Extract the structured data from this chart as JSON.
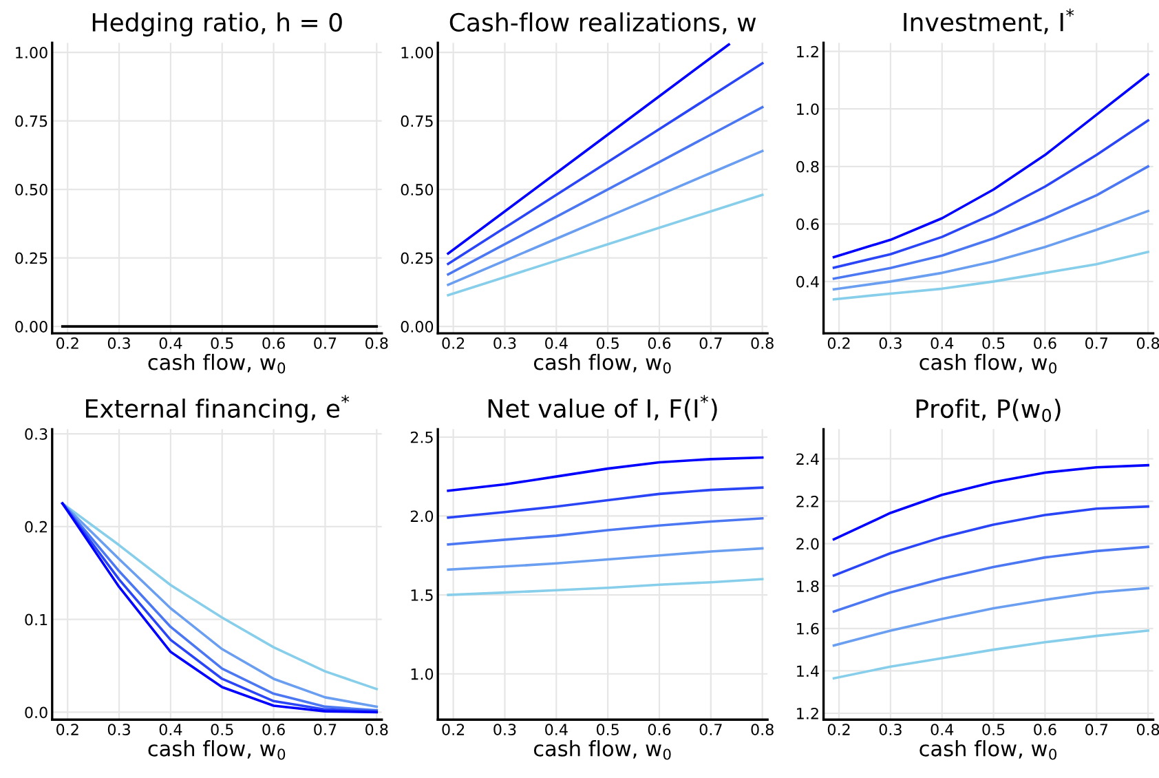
{
  "chart_data": [
    {
      "type": "line",
      "title": "Hedging ratio, h = 0",
      "xlabel": "cash flow, w$_{0}$",
      "x": [
        0.19,
        0.3,
        0.4,
        0.5,
        0.6,
        0.7,
        0.8
      ],
      "xlim": [
        0.17,
        0.81
      ],
      "xticks": [
        0.2,
        0.3,
        0.4,
        0.5,
        0.6,
        0.7,
        0.8
      ],
      "ylim": [
        -0.025,
        1.035
      ],
      "yticks": [
        {
          "value": 0,
          "label": "0.00"
        },
        {
          "value": 0.25,
          "label": "0.25"
        },
        {
          "value": 0.5,
          "label": "0.50"
        },
        {
          "value": 0.75,
          "label": "0.75"
        },
        {
          "value": 1,
          "label": "1.00"
        }
      ],
      "grid": true,
      "legend": false,
      "series": [
        {
          "color": "#000000",
          "values": [
            0,
            0,
            0,
            0,
            0,
            0,
            0
          ]
        }
      ]
    },
    {
      "type": "line",
      "title": "Cash-flow realizations, w",
      "xlabel": "cash flow, w$_{0}$",
      "x": [
        0.19,
        0.3,
        0.4,
        0.5,
        0.6,
        0.7,
        0.8
      ],
      "xlim": [
        0.17,
        0.81
      ],
      "xticks": [
        0.2,
        0.3,
        0.4,
        0.5,
        0.6,
        0.7,
        0.8
      ],
      "ylim": [
        -0.025,
        1.035
      ],
      "yticks": [
        {
          "value": 0,
          "label": "0.00"
        },
        {
          "value": 0.25,
          "label": "0.25"
        },
        {
          "value": 0.5,
          "label": "0.50"
        },
        {
          "value": 0.75,
          "label": "0.75"
        },
        {
          "value": 1,
          "label": "1.00"
        }
      ],
      "grid": true,
      "legend": false,
      "series": [
        {
          "color": "#87ceeb",
          "values": [
            0.114,
            0.18,
            0.24,
            0.3,
            0.36,
            0.42,
            0.48
          ]
        },
        {
          "color": "#6a9ef0",
          "values": [
            0.152,
            0.24,
            0.32,
            0.4,
            0.48,
            0.56,
            0.64
          ]
        },
        {
          "color": "#4b77f2",
          "values": [
            0.19,
            0.3,
            0.4,
            0.5,
            0.6,
            0.7,
            0.8
          ]
        },
        {
          "color": "#2a45f6",
          "values": [
            0.228,
            0.36,
            0.48,
            0.6,
            0.72,
            0.84,
            0.96
          ]
        },
        {
          "color": "#0000ff",
          "x": [
            0.19,
            0.3,
            0.4,
            0.5,
            0.6,
            0.7,
            0.735
          ],
          "values": [
            0.266,
            0.42,
            0.56,
            0.7,
            0.84,
            0.98,
            1.029
          ]
        }
      ]
    },
    {
      "type": "line",
      "title": "Investment, I$^{*}$",
      "xlabel": "cash flow, w$_{0}$",
      "x": [
        0.19,
        0.3,
        0.4,
        0.5,
        0.6,
        0.7,
        0.8
      ],
      "xlim": [
        0.17,
        0.81
      ],
      "xticks": [
        0.2,
        0.3,
        0.4,
        0.5,
        0.6,
        0.7,
        0.8
      ],
      "ylim": [
        0.22,
        1.23
      ],
      "yticks": [
        0.4,
        0.6,
        0.8,
        {
          "value": 1,
          "label": "1.0"
        },
        1.2
      ],
      "grid": true,
      "legend": false,
      "series": [
        {
          "color": "#87ceeb",
          "values": [
            0.338,
            0.358,
            0.375,
            0.4,
            0.43,
            0.46,
            0.503
          ]
        },
        {
          "color": "#6a9ef0",
          "values": [
            0.373,
            0.4,
            0.43,
            0.47,
            0.52,
            0.58,
            0.645
          ]
        },
        {
          "color": "#4b77f2",
          "values": [
            0.41,
            0.447,
            0.49,
            0.55,
            0.62,
            0.7,
            0.8
          ]
        },
        {
          "color": "#2a45f6",
          "values": [
            0.448,
            0.495,
            0.555,
            0.635,
            0.73,
            0.84,
            0.96
          ]
        },
        {
          "color": "#0000ff",
          "values": [
            0.485,
            0.545,
            0.62,
            0.72,
            0.84,
            0.98,
            1.12
          ]
        }
      ]
    },
    {
      "type": "line",
      "title": "External financing, e$^{*}$",
      "xlabel": "cash flow, w$_{0}$",
      "x": [
        0.19,
        0.3,
        0.4,
        0.5,
        0.6,
        0.7,
        0.8
      ],
      "xlim": [
        0.17,
        0.81
      ],
      "xticks": [
        0.2,
        0.3,
        0.4,
        0.5,
        0.6,
        0.7,
        0.8
      ],
      "ylim": [
        -0.008,
        0.305
      ],
      "yticks": [
        {
          "value": 0,
          "label": "0.0"
        },
        0.1,
        0.2,
        0.3
      ],
      "grid": true,
      "legend": false,
      "series": [
        {
          "color": "#87ceeb",
          "values": [
            0.225,
            0.18,
            0.137,
            0.102,
            0.07,
            0.044,
            0.025
          ]
        },
        {
          "color": "#6a9ef0",
          "values": [
            0.225,
            0.165,
            0.112,
            0.068,
            0.036,
            0.016,
            0.006
          ]
        },
        {
          "color": "#4b77f2",
          "values": [
            0.225,
            0.152,
            0.092,
            0.047,
            0.02,
            0.006,
            0.002
          ]
        },
        {
          "color": "#2a45f6",
          "values": [
            0.225,
            0.143,
            0.078,
            0.036,
            0.012,
            0.003,
            0.001
          ]
        },
        {
          "color": "#0000ff",
          "values": [
            0.225,
            0.135,
            0.065,
            0.027,
            0.007,
            0.001,
            0
          ]
        }
      ]
    },
    {
      "type": "line",
      "title": "Net value of I, F(I$^{*}$)",
      "xlabel": "cash flow, w$_{0}$",
      "x": [
        0.19,
        0.3,
        0.4,
        0.5,
        0.6,
        0.7,
        0.8
      ],
      "xlim": [
        0.17,
        0.81
      ],
      "xticks": [
        0.2,
        0.3,
        0.4,
        0.5,
        0.6,
        0.7,
        0.8
      ],
      "ylim": [
        0.71,
        2.55
      ],
      "yticks": [
        {
          "value": 1,
          "label": "1.0"
        },
        1.5,
        {
          "value": 2,
          "label": "2.0"
        },
        2.5
      ],
      "grid": true,
      "legend": false,
      "series": [
        {
          "color": "#87ceeb",
          "values": [
            1.5,
            1.515,
            1.53,
            1.545,
            1.565,
            1.58,
            1.6
          ]
        },
        {
          "color": "#6a9ef0",
          "values": [
            1.66,
            1.68,
            1.7,
            1.725,
            1.75,
            1.775,
            1.795
          ]
        },
        {
          "color": "#4b77f2",
          "values": [
            1.82,
            1.85,
            1.875,
            1.91,
            1.94,
            1.965,
            1.985
          ]
        },
        {
          "color": "#2a45f6",
          "values": [
            1.99,
            2.025,
            2.06,
            2.1,
            2.14,
            2.165,
            2.18
          ]
        },
        {
          "color": "#0000ff",
          "values": [
            2.16,
            2.2,
            2.25,
            2.3,
            2.34,
            2.36,
            2.37
          ]
        }
      ]
    },
    {
      "type": "line",
      "title": "Profit, P(w$_{0}$)",
      "xlabel": "cash flow, w$_{0}$",
      "x": [
        0.19,
        0.3,
        0.4,
        0.5,
        0.6,
        0.7,
        0.8
      ],
      "xlim": [
        0.17,
        0.81
      ],
      "xticks": [
        0.2,
        0.3,
        0.4,
        0.5,
        0.6,
        0.7,
        0.8
      ],
      "ylim": [
        1.17,
        2.54
      ],
      "yticks": [
        1.2,
        1.4,
        1.6,
        1.8,
        {
          "value": 2,
          "label": "2.0"
        },
        2.2,
        2.4
      ],
      "grid": true,
      "legend": false,
      "series": [
        {
          "color": "#87ceeb",
          "values": [
            1.365,
            1.42,
            1.46,
            1.5,
            1.535,
            1.565,
            1.59
          ]
        },
        {
          "color": "#6a9ef0",
          "values": [
            1.52,
            1.59,
            1.645,
            1.695,
            1.735,
            1.77,
            1.79
          ]
        },
        {
          "color": "#4b77f2",
          "values": [
            1.68,
            1.77,
            1.835,
            1.89,
            1.935,
            1.965,
            1.985
          ]
        },
        {
          "color": "#2a45f6",
          "values": [
            1.85,
            1.955,
            2.03,
            2.09,
            2.135,
            2.165,
            2.175
          ]
        },
        {
          "color": "#0000ff",
          "values": [
            2.02,
            2.145,
            2.23,
            2.29,
            2.335,
            2.36,
            2.37
          ]
        }
      ]
    }
  ]
}
